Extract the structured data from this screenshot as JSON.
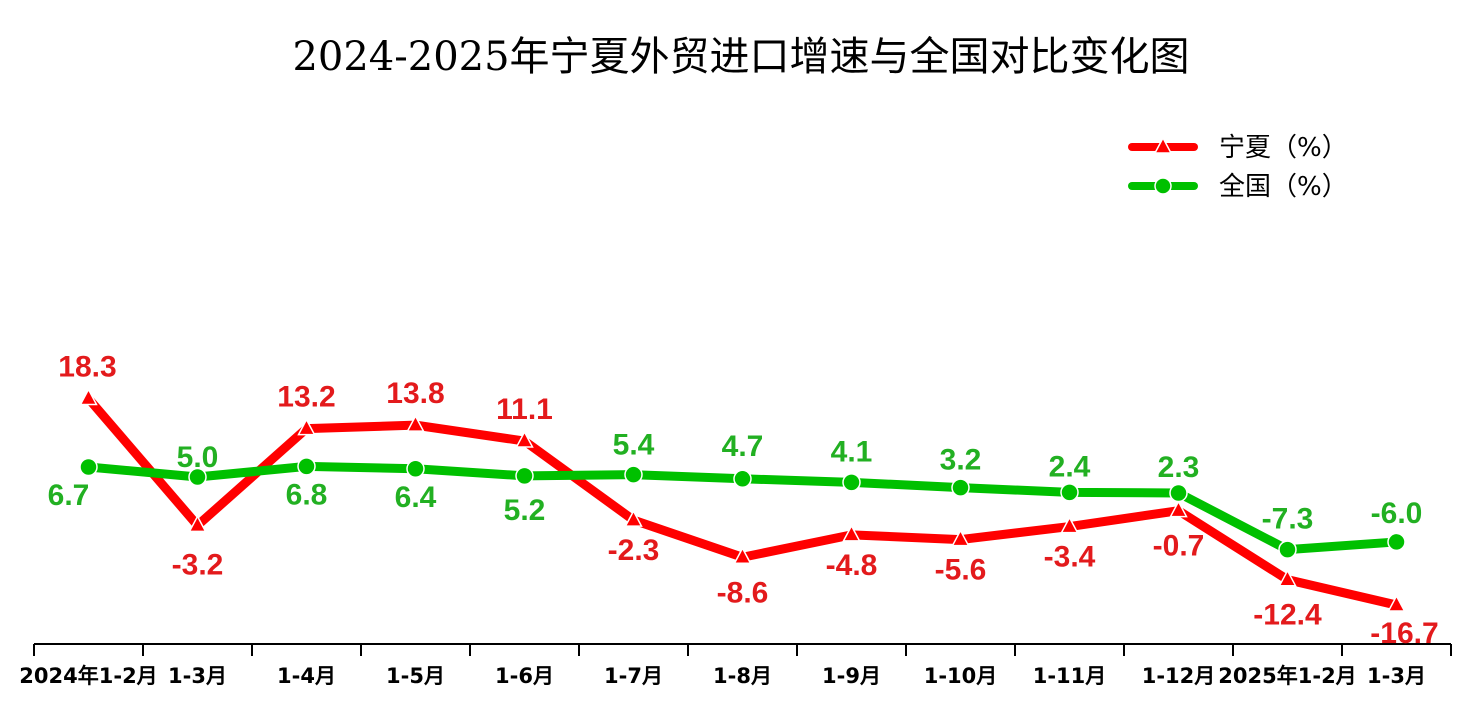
{
  "chart_data": {
    "type": "line",
    "title": "2024-2025年宁夏外贸进口增速与全国对比变化图",
    "categories": [
      "2024年1-2月",
      "1-3月",
      "1-4月",
      "1-5月",
      "1-6月",
      "1-7月",
      "1-8月",
      "1-9月",
      "1-10月",
      "1-11月",
      "1-12月",
      "2025年1-2月",
      "1-3月"
    ],
    "series": [
      {
        "name": "宁夏（%）",
        "color": "#ff0000",
        "label_color": "#e31a1c",
        "marker": "triangle",
        "values": [
          18.3,
          -3.2,
          13.2,
          13.8,
          11.1,
          -2.3,
          -8.6,
          -4.8,
          -5.6,
          -3.4,
          -0.7,
          -12.4,
          -16.7
        ],
        "value_labels": [
          "18.3",
          "-3.2",
          "13.2",
          "13.8",
          "11.1",
          "-2.3",
          "-8.6",
          "-4.8",
          "-5.6",
          "-3.4",
          "-0.7",
          "-12.4",
          "-16.7"
        ]
      },
      {
        "name": "全国（%）",
        "color": "#00c000",
        "label_color": "#22b022",
        "marker": "circle",
        "values": [
          6.7,
          5.0,
          6.8,
          6.4,
          5.2,
          5.4,
          4.7,
          4.1,
          3.2,
          2.4,
          2.3,
          -7.3,
          -6.0
        ],
        "value_labels": [
          "6.7",
          "5.0",
          "6.8",
          "6.4",
          "5.2",
          "5.4",
          "4.7",
          "4.1",
          "3.2",
          "2.4",
          "2.3",
          "-7.3",
          "-6.0"
        ]
      }
    ],
    "legend_position": "top-right",
    "grid": false,
    "y_axis_visible": false
  }
}
